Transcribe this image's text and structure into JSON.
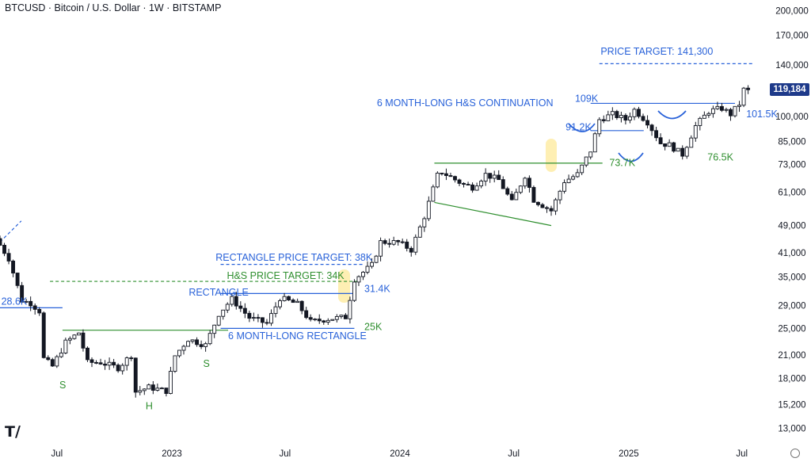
{
  "header": {
    "title": "BTCUSD · Bitcoin / U.S. Dollar · 1W · BITSTAMP"
  },
  "current_price": {
    "label": "119,184",
    "value": 119184,
    "color": "#1e3a8a"
  },
  "colors": {
    "candle": "#131722",
    "blue": "#2962d9",
    "green": "#2f8f2f",
    "highlight": "#fde68a"
  },
  "icons": {
    "logo": "tradingview-logo-icon",
    "settings": "settings-icon"
  },
  "chart_data": {
    "type": "candlestick",
    "y_scale": "log",
    "ylim": [
      12500,
      210000
    ],
    "xlim": [
      "2022-04-01",
      "2025-07-28"
    ],
    "y_ticks": [
      {
        "label": "13,000",
        "value": 13000
      },
      {
        "label": "15,200",
        "value": 15200
      },
      {
        "label": "18,000",
        "value": 18000
      },
      {
        "label": "21,000",
        "value": 21000
      },
      {
        "label": "25,000",
        "value": 25000
      },
      {
        "label": "29,000",
        "value": 29000
      },
      {
        "label": "35,000",
        "value": 35000
      },
      {
        "label": "41,000",
        "value": 41000
      },
      {
        "label": "49,000",
        "value": 49000
      },
      {
        "label": "61,000",
        "value": 61000
      },
      {
        "label": "73,000",
        "value": 73000
      },
      {
        "label": "85,000",
        "value": 85000
      },
      {
        "label": "100,000",
        "value": 100000
      },
      {
        "label": "140,000",
        "value": 140000
      },
      {
        "label": "170,000",
        "value": 170000
      },
      {
        "label": "200,000",
        "value": 200000
      }
    ],
    "x_ticks": [
      {
        "label": "Jul",
        "date": "2022-07-01"
      },
      {
        "label": "2023",
        "date": "2023-01-01"
      },
      {
        "label": "Jul",
        "date": "2023-07-01"
      },
      {
        "label": "2024",
        "date": "2024-01-01"
      },
      {
        "label": "Jul",
        "date": "2024-07-01"
      },
      {
        "label": "2025",
        "date": "2025-01-01"
      },
      {
        "label": "Jul",
        "date": "2025-07-01"
      }
    ],
    "price_path": [
      [
        "2022-04-01",
        45000
      ],
      [
        "2022-04-22",
        39500
      ],
      [
        "2022-05-13",
        30000
      ],
      [
        "2022-05-27",
        29500
      ],
      [
        "2022-06-10",
        28000
      ],
      [
        "2022-06-17",
        20500
      ],
      [
        "2022-07-01",
        19500
      ],
      [
        "2022-07-22",
        22800
      ],
      [
        "2022-08-12",
        24300
      ],
      [
        "2022-08-26",
        20000
      ],
      [
        "2022-09-16",
        20000
      ],
      [
        "2022-10-14",
        19300
      ],
      [
        "2022-11-04",
        21000
      ],
      [
        "2022-11-11",
        16500
      ],
      [
        "2022-12-02",
        17000
      ],
      [
        "2022-12-30",
        16600
      ],
      [
        "2023-01-13",
        20900
      ],
      [
        "2023-02-03",
        23300
      ],
      [
        "2023-03-03",
        22400
      ],
      [
        "2023-03-24",
        27500
      ],
      [
        "2023-04-14",
        30300
      ],
      [
        "2023-05-12",
        26800
      ],
      [
        "2023-06-09",
        25800
      ],
      [
        "2023-06-30",
        30500
      ],
      [
        "2023-07-28",
        29300
      ],
      [
        "2023-08-18",
        26100
      ],
      [
        "2023-09-15",
        26600
      ],
      [
        "2023-10-13",
        26900
      ],
      [
        "2023-10-27",
        34500
      ],
      [
        "2023-11-24",
        37800
      ],
      [
        "2023-12-08",
        44000
      ],
      [
        "2024-01-05",
        43900
      ],
      [
        "2024-01-26",
        41800
      ],
      [
        "2024-02-16",
        52000
      ],
      [
        "2024-03-08",
        68000
      ],
      [
        "2024-03-15",
        69500
      ],
      [
        "2024-04-19",
        64000
      ],
      [
        "2024-05-03",
        63000
      ],
      [
        "2024-05-24",
        68500
      ],
      [
        "2024-06-14",
        66000
      ],
      [
        "2024-07-05",
        57000
      ],
      [
        "2024-07-26",
        68000
      ],
      [
        "2024-08-09",
        58000
      ],
      [
        "2024-09-06",
        54000
      ],
      [
        "2024-09-27",
        65500
      ],
      [
        "2024-10-18",
        68500
      ],
      [
        "2024-11-08",
        80000
      ],
      [
        "2024-11-22",
        98000
      ],
      [
        "2024-12-13",
        101500
      ],
      [
        "2025-01-03",
        98000
      ],
      [
        "2025-01-17",
        104500
      ],
      [
        "2025-02-07",
        96500
      ],
      [
        "2025-02-28",
        84000
      ],
      [
        "2025-03-14",
        83000
      ],
      [
        "2025-04-04",
        78000
      ],
      [
        "2025-04-25",
        94000
      ],
      [
        "2025-05-16",
        103500
      ],
      [
        "2025-06-06",
        105500
      ],
      [
        "2025-06-20",
        101500
      ],
      [
        "2025-07-04",
        108500
      ],
      [
        "2025-07-11",
        119184
      ]
    ],
    "lines": [
      {
        "color": "#2962d9",
        "style": "solid",
        "from": [
          "2022-04-01",
          28600
        ],
        "to": [
          "2022-07-10",
          28600
        ]
      },
      {
        "color": "#2f8f2f",
        "style": "solid",
        "from": [
          "2022-07-10",
          24700
        ],
        "to": [
          "2023-04-01",
          24700
        ]
      },
      {
        "color": "#2f8f2f",
        "style": "dashed",
        "from": [
          "2022-06-20",
          34000
        ],
        "to": [
          "2023-10-25",
          34000
        ]
      },
      {
        "color": "#2962d9",
        "style": "solid",
        "from": [
          "2023-03-20",
          31400
        ],
        "to": [
          "2023-10-20",
          31400
        ]
      },
      {
        "color": "#2962d9",
        "style": "solid",
        "from": [
          "2023-03-20",
          25000
        ],
        "to": [
          "2023-10-20",
          25000
        ]
      },
      {
        "color": "#2962d9",
        "style": "dashed",
        "from": [
          "2023-03-20",
          38000
        ],
        "to": [
          "2023-11-05",
          38000
        ]
      },
      {
        "color": "#2f8f2f",
        "style": "solid",
        "from": [
          "2024-02-25",
          73700
        ],
        "to": [
          "2024-11-20",
          73700
        ]
      },
      {
        "color": "#2f8f2f",
        "style": "solid",
        "from": [
          "2024-02-25",
          57000
        ],
        "to": [
          "2024-08-30",
          49000
        ]
      },
      {
        "color": "#2962d9",
        "style": "solid",
        "from": [
          "2024-11-01",
          109000
        ],
        "to": [
          "2025-06-20",
          109000
        ]
      },
      {
        "color": "#2962d9",
        "style": "solid",
        "from": [
          "2024-11-01",
          91200
        ],
        "to": [
          "2025-01-25",
          91200
        ]
      },
      {
        "color": "#2962d9",
        "style": "dashed",
        "from": [
          "2024-11-15",
          141300
        ],
        "to": [
          "2025-07-20",
          141300
        ]
      },
      {
        "color": "#2962d9",
        "style": "dashed",
        "from": [
          "2022-04-01",
          44000
        ],
        "to": [
          "2022-05-05",
          50500
        ]
      }
    ],
    "annotations": [
      {
        "text": "28.6K",
        "color": "blue",
        "at": [
          "2022-04-03",
          29200
        ]
      },
      {
        "text": "S",
        "color": "green",
        "at": [
          "2022-07-05",
          16900
        ]
      },
      {
        "text": "H",
        "color": "green",
        "at": [
          "2022-11-20",
          14700
        ]
      },
      {
        "text": "S",
        "color": "green",
        "at": [
          "2023-02-20",
          19400
        ]
      },
      {
        "text": "RECTANGLE PRICE TARGET: 38K",
        "color": "blue",
        "at": [
          "2023-03-12",
          38900
        ]
      },
      {
        "text": "H&S PRICE TARGET: 34K",
        "color": "green",
        "at": [
          "2023-03-30",
          34500
        ]
      },
      {
        "text": "RECTANGLE",
        "color": "blue",
        "at": [
          "2023-01-28",
          31000
        ]
      },
      {
        "text": "31.4K",
        "color": "blue",
        "at": [
          "2023-11-05",
          31700
        ]
      },
      {
        "text": "25K",
        "color": "green",
        "at": [
          "2023-11-05",
          24700
        ]
      },
      {
        "text": "6 MONTH-LONG RECTANGLE",
        "color": "blue",
        "at": [
          "2023-04-01",
          23300
        ]
      },
      {
        "text": "6 MONTH-LONG H&S CONTINUATION",
        "color": "blue",
        "at": [
          "2023-11-25",
          107000
        ]
      },
      {
        "text": "109K",
        "color": "blue",
        "at": [
          "2024-10-07",
          110000
        ]
      },
      {
        "text": "91.2K",
        "color": "blue",
        "at": [
          "2024-09-22",
          91300
        ]
      },
      {
        "text": "73.7K",
        "color": "green",
        "at": [
          "2024-12-01",
          72300
        ]
      },
      {
        "text": "76.5K",
        "color": "green",
        "at": [
          "2025-05-07",
          75000
        ]
      },
      {
        "text": "101.5K",
        "color": "blue",
        "at": [
          "2025-07-08",
          99500
        ]
      },
      {
        "text": "PRICE TARGET: 141,300",
        "color": "blue",
        "at": [
          "2024-11-17",
          150000
        ]
      }
    ]
  }
}
